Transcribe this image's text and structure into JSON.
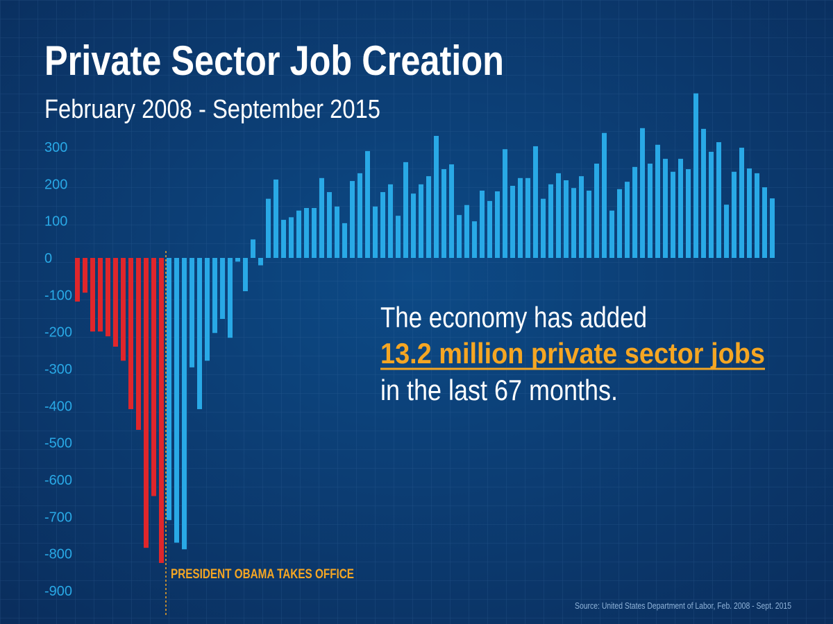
{
  "chart_data": {
    "type": "bar",
    "title": "Private Sector Job Creation",
    "subtitle": "February 2008 - September 2015",
    "annotation_lines": [
      "The economy has added",
      "13.2 million private sector jobs",
      "in the last 67 months."
    ],
    "marker_label": "PRESIDENT OBAMA TAKES OFFICE",
    "source": "Source: United States Department of Labor,  Feb. 2008 - Sept. 2015",
    "categories": [
      null,
      null,
      null,
      null,
      null,
      null,
      null,
      null,
      null,
      null,
      null,
      null,
      null,
      null,
      null,
      null,
      null,
      null,
      null,
      null,
      null,
      null,
      null,
      null,
      null,
      null,
      null,
      null,
      null,
      null,
      null,
      null,
      null,
      null,
      null,
      null,
      null,
      null,
      null,
      null,
      null,
      null,
      null,
      null,
      null,
      null,
      null,
      null,
      null,
      null,
      null,
      null,
      null,
      null,
      null,
      null,
      null,
      null,
      null,
      null,
      null,
      null,
      null,
      null,
      null,
      null,
      null,
      null,
      null,
      null,
      null,
      null,
      null,
      null,
      null,
      null,
      null,
      null,
      null,
      null,
      null,
      null,
      null,
      null,
      null,
      null,
      null,
      null,
      null,
      null,
      null,
      null
    ],
    "series": [
      {
        "color": "#e0262b",
        "values": [
          -118,
          -94,
          -199,
          -199,
          -212,
          -240,
          -278,
          -409,
          -465,
          -784,
          -644,
          -825,
          null,
          null,
          null,
          null,
          null,
          null,
          null,
          null,
          null,
          null,
          null,
          null,
          null,
          null,
          null,
          null,
          null,
          null,
          null,
          null,
          null,
          null,
          null,
          null,
          null,
          null,
          null,
          null,
          null,
          null,
          null,
          null,
          null,
          null,
          null,
          null,
          null,
          null,
          null,
          null,
          null,
          null,
          null,
          null,
          null,
          null,
          null,
          null,
          null,
          null,
          null,
          null,
          null,
          null,
          null,
          null,
          null,
          null,
          null,
          null,
          null,
          null,
          null,
          null,
          null,
          null,
          null,
          null,
          null,
          null,
          null,
          null,
          null,
          null,
          null,
          null,
          null,
          null,
          null,
          null
        ]
      },
      {
        "color": "#29a9e6",
        "values": [
          null,
          null,
          null,
          null,
          null,
          null,
          null,
          null,
          null,
          null,
          null,
          null,
          -709,
          -770,
          -788,
          -296,
          -409,
          -278,
          -203,
          -165,
          -216,
          -10,
          -90,
          50,
          -20,
          160,
          212,
          103,
          110,
          128,
          135,
          135,
          216,
          178,
          139,
          94,
          208,
          229,
          289,
          139,
          178,
          199,
          114,
          259,
          174,
          199,
          221,
          330,
          240,
          253,
          116,
          143,
          99,
          182,
          154,
          180,
          294,
          195,
          216,
          216,
          302,
          160,
          199,
          229,
          210,
          189,
          221,
          182,
          255,
          338,
          128,
          186,
          206,
          246,
          351,
          255,
          306,
          268,
          233,
          268,
          240,
          445,
          349,
          287,
          313,
          144,
          233,
          298,
          242,
          229,
          191,
          161
        ]
      }
    ],
    "ylim": [
      -900,
      450
    ],
    "yticks": [
      300,
      200,
      100,
      0,
      -100,
      -200,
      -300,
      -400,
      -500,
      -600,
      -700,
      -800,
      -900
    ],
    "tick_color": "#29a9e6",
    "highlight_color": "#f5a623"
  }
}
